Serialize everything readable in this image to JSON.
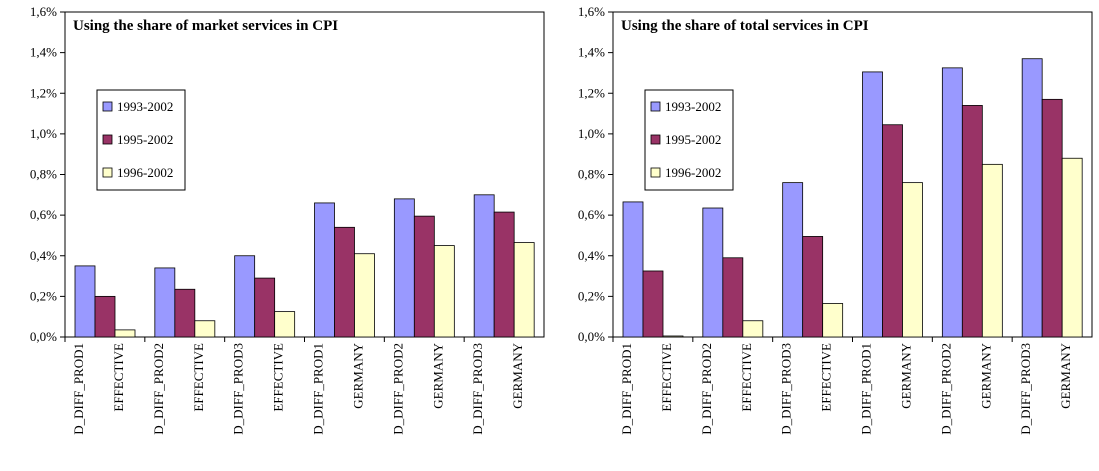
{
  "chart_data": [
    {
      "type": "bar",
      "title": "Using the share of market services in CPI",
      "categories": [
        [
          "D_DIFF_PROD1",
          "EFFECTIVE"
        ],
        [
          "D_DIFF_PROD2",
          "EFFECTIVE"
        ],
        [
          "D_DIFF_PROD3",
          "EFFECTIVE"
        ],
        [
          "D_DIFF_PROD1",
          "GERMANY"
        ],
        [
          "D_DIFF_PROD2",
          "GERMANY"
        ],
        [
          "D_DIFF_PROD3",
          "GERMANY"
        ]
      ],
      "series": [
        {
          "name": "1993-2002",
          "color": "#9999ff",
          "values": [
            0.35,
            0.34,
            0.4,
            0.66,
            0.68,
            0.7
          ]
        },
        {
          "name": "1995-2002",
          "color": "#993366",
          "values": [
            0.2,
            0.235,
            0.29,
            0.54,
            0.595,
            0.615
          ]
        },
        {
          "name": "1996-2002",
          "color": "#ffffcc",
          "values": [
            0.035,
            0.08,
            0.125,
            0.41,
            0.45,
            0.465
          ]
        }
      ],
      "ylim": [
        0,
        1.6
      ],
      "yticks": [
        {
          "value": 0,
          "label": "0,0%"
        },
        {
          "value": 0.2,
          "label": "0,2%"
        },
        {
          "value": 0.4,
          "label": "0,4%"
        },
        {
          "value": 0.6,
          "label": "0,6%"
        },
        {
          "value": 0.8,
          "label": "0,8%"
        },
        {
          "value": 1.0,
          "label": "1,0%"
        },
        {
          "value": 1.2,
          "label": "1,2%"
        },
        {
          "value": 1.4,
          "label": "1,4%"
        },
        {
          "value": 1.6,
          "label": "1,6%"
        }
      ],
      "legend": "left"
    },
    {
      "type": "bar",
      "title": "Using the share of total services in CPI",
      "categories": [
        [
          "D_DIFF_PROD1",
          "EFFECTIVE"
        ],
        [
          "D_DIFF_PROD2",
          "EFFECTIVE"
        ],
        [
          "D_DIFF_PROD3",
          "EFFECTIVE"
        ],
        [
          "D_DIFF_PROD1",
          "GERMANY"
        ],
        [
          "D_DIFF_PROD2",
          "GERMANY"
        ],
        [
          "D_DIFF_PROD3",
          "GERMANY"
        ]
      ],
      "series": [
        {
          "name": "1993-2002",
          "color": "#9999ff",
          "values": [
            0.665,
            0.635,
            0.76,
            1.305,
            1.325,
            1.37
          ]
        },
        {
          "name": "1995-2002",
          "color": "#993366",
          "values": [
            0.325,
            0.39,
            0.495,
            1.045,
            1.14,
            1.17
          ]
        },
        {
          "name": "1996-2002",
          "color": "#ffffcc",
          "values": [
            0.005,
            0.08,
            0.165,
            0.76,
            0.85,
            0.88
          ]
        }
      ],
      "ylim": [
        0,
        1.6
      ],
      "yticks": [
        {
          "value": 0,
          "label": "0,0%"
        },
        {
          "value": 0.2,
          "label": "0,2%"
        },
        {
          "value": 0.4,
          "label": "0,4%"
        },
        {
          "value": 0.6,
          "label": "0,6%"
        },
        {
          "value": 0.8,
          "label": "0,8%"
        },
        {
          "value": 1.0,
          "label": "1,0%"
        },
        {
          "value": 1.2,
          "label": "1,2%"
        },
        {
          "value": 1.4,
          "label": "1,4%"
        },
        {
          "value": 1.6,
          "label": "1,6%"
        }
      ],
      "legend": "left"
    }
  ]
}
